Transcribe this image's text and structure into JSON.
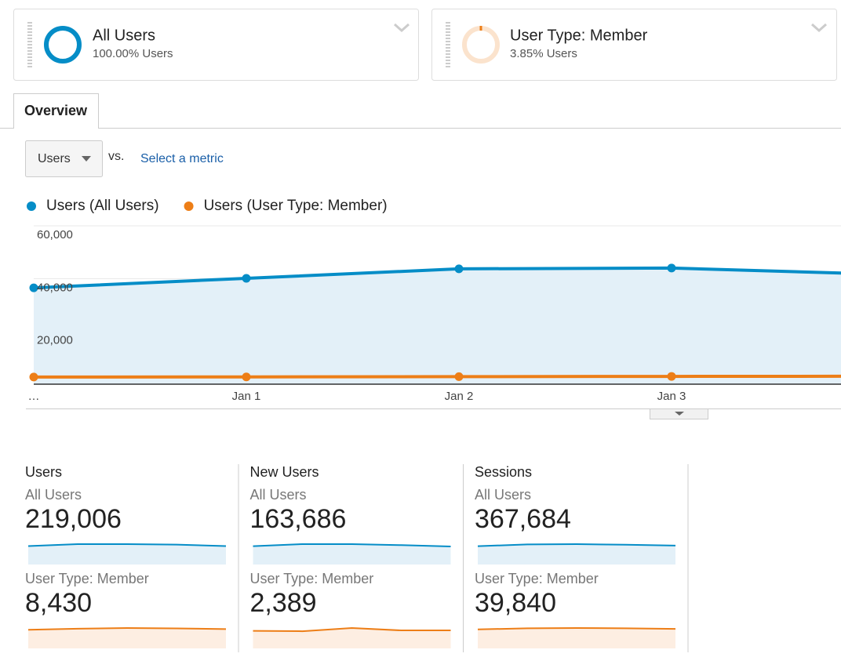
{
  "segments": [
    {
      "name": "All Users",
      "share": "100.00% Users"
    },
    {
      "name": "User Type: Member",
      "share": "3.85% Users"
    }
  ],
  "tabs": [
    "Overview"
  ],
  "metric_picker": {
    "metric": "Users",
    "vs": "vs.",
    "select": "Select a metric"
  },
  "chart_data": {
    "type": "line",
    "categories": [
      "…",
      "Jan 1",
      "Jan 2",
      "Jan 3",
      null
    ],
    "series": [
      {
        "name": "Users (All Users)",
        "color": "#058dc7",
        "values": [
          36500,
          40100,
          43700,
          44000,
          41600
        ]
      },
      {
        "name": "Users (User Type: Member)",
        "color": "#ed7e17",
        "values": [
          2700,
          2750,
          2850,
          2950,
          3000
        ]
      }
    ],
    "ylim": [
      0,
      60000
    ],
    "yticks": [
      {
        "value": 20000,
        "label": "20,000"
      },
      {
        "value": 40000,
        "label": "40,000"
      },
      {
        "value": 60000,
        "label": "60,000"
      }
    ],
    "grid": true,
    "area": true
  },
  "scorecards": [
    {
      "title": "Users",
      "rows": [
        {
          "segment": "All Users",
          "value": "219,006",
          "trend": [
            37000,
            41000,
            41000,
            40000,
            37000
          ]
        },
        {
          "segment": "User Type: Member",
          "value": "8,430",
          "trend": [
            2600,
            2750,
            2850,
            2800,
            2700
          ]
        }
      ]
    },
    {
      "title": "New Users",
      "rows": [
        {
          "segment": "All Users",
          "value": "163,686",
          "trend": [
            27000,
            30000,
            30000,
            28500,
            26500
          ]
        },
        {
          "segment": "User Type: Member",
          "value": "2,389",
          "trend": [
            440,
            430,
            510,
            450,
            450
          ]
        }
      ]
    },
    {
      "title": "Sessions",
      "rows": [
        {
          "segment": "All Users",
          "value": "367,684",
          "trend": [
            62000,
            68000,
            69000,
            67000,
            64000
          ]
        },
        {
          "segment": "User Type: Member",
          "value": "39,840",
          "trend": [
            6800,
            7200,
            7300,
            7200,
            7000
          ]
        }
      ]
    }
  ]
}
